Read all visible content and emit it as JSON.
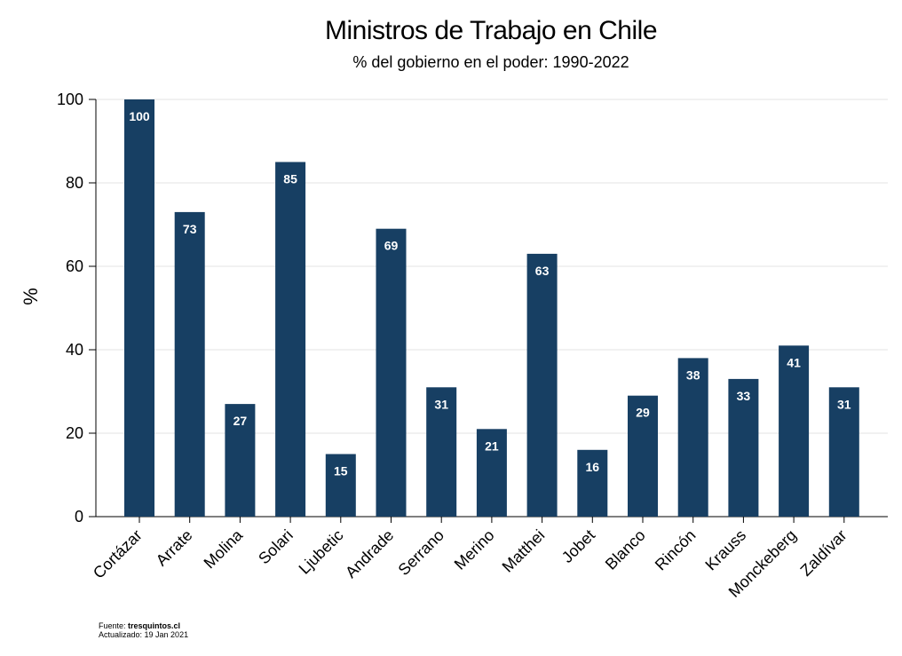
{
  "chart_data": {
    "type": "bar",
    "title": "Ministros de Trabajo en Chile",
    "subtitle": "% del gobierno en el poder: 1990-2022",
    "xlabel": "",
    "ylabel": "%",
    "ylim": [
      0,
      100
    ],
    "yticks": [
      0,
      20,
      40,
      60,
      80,
      100
    ],
    "grid": true,
    "categories": [
      "Cortázar",
      "Arrate",
      "Molina",
      "Solari",
      "Ljubetic",
      "Andrade",
      "Serrano",
      "Merino",
      "Matthei",
      "Jobet",
      "Blanco",
      "Rincón",
      "Krauss",
      "Monckeberg",
      "Zaldívar"
    ],
    "values": [
      100,
      73,
      27,
      85,
      15,
      69,
      31,
      21,
      63,
      16,
      29,
      38,
      33,
      41,
      31
    ],
    "bar_color": "#173f63",
    "label_color": "#ffffff"
  },
  "footer": {
    "source_prefix": "Fuente: ",
    "source": "tresquintos.cl",
    "updated": "Actualizado: 19 Jan 2021"
  }
}
